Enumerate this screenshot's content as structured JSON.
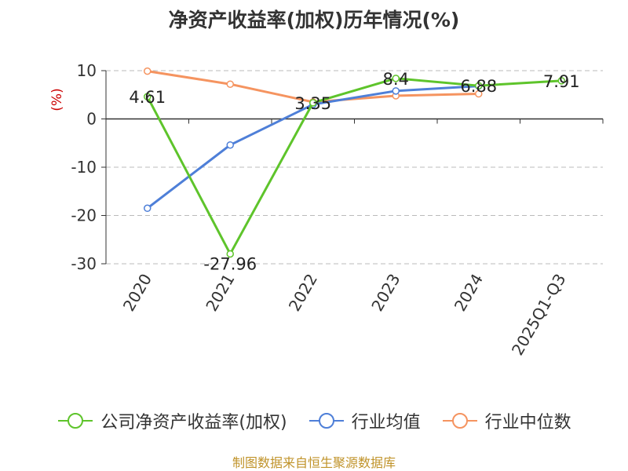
{
  "chart_data": {
    "type": "line",
    "title": "净资产收益率(加权)历年情况(%)",
    "ylabel": "(%)",
    "categories": [
      "2020",
      "2021",
      "2022",
      "2023",
      "2024",
      "2025Q1-Q3"
    ],
    "yticks": [
      "10",
      "0",
      "-10",
      "-20",
      "-30"
    ],
    "ylim": [
      -30,
      10
    ],
    "grid": true,
    "legend_position": "bottom",
    "series": [
      {
        "name": "公司净资产收益率(加权)",
        "color": "#5ec42b",
        "values": [
          4.61,
          -27.96,
          3.35,
          8.4,
          6.88,
          7.91
        ],
        "labels": [
          "4.61",
          "-27.96",
          "3.35",
          "8.4",
          "6.88",
          "7.91"
        ]
      },
      {
        "name": "行业均值",
        "color": "#4e7fd8",
        "values": [
          -18.5,
          -5.4,
          3.0,
          5.8,
          6.8,
          null
        ]
      },
      {
        "name": "行业中位数",
        "color": "#f59460",
        "values": [
          9.9,
          7.2,
          3.5,
          4.8,
          5.2,
          null
        ]
      }
    ]
  },
  "legend": {
    "items": [
      "公司净资产收益率(加权)",
      "行业均值",
      "行业中位数"
    ]
  },
  "footer": {
    "source": "制图数据来自恒生聚源数据库"
  }
}
